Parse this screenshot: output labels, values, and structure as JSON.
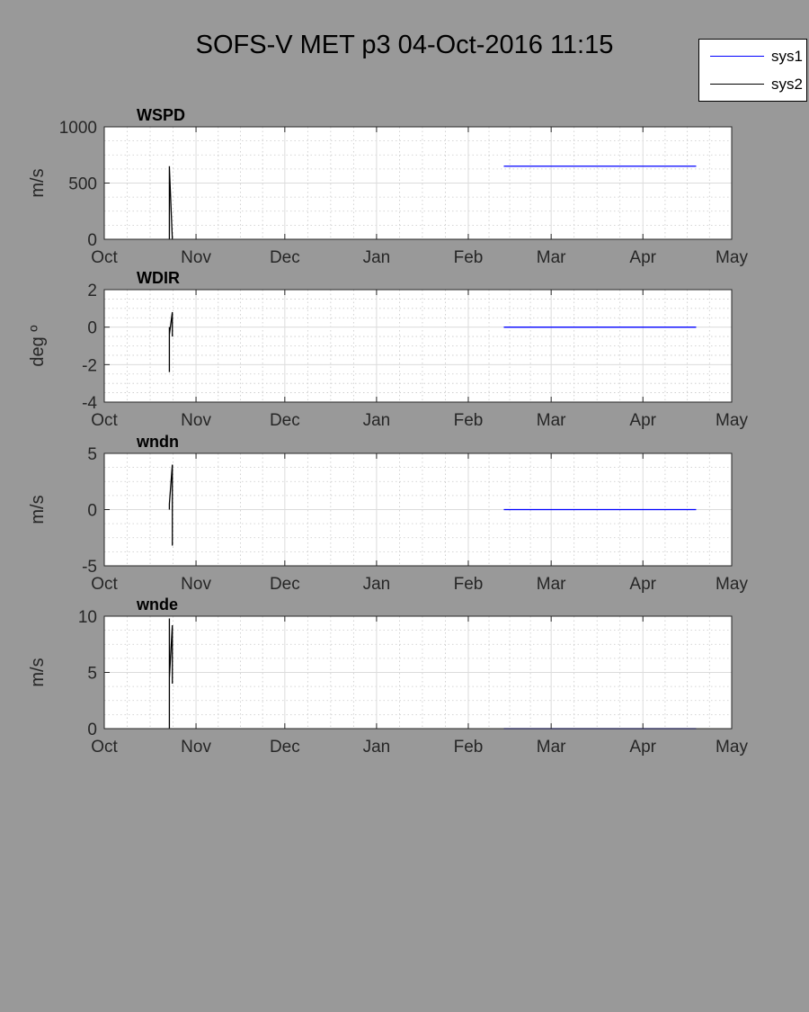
{
  "figure": {
    "title": "SOFS-V MET p3 04-Oct-2016 11:15"
  },
  "colors": {
    "background": "#999999",
    "axes_bg": "#ffffff",
    "sys1": "#0000ff",
    "sys2": "#000000"
  },
  "legend": {
    "placement": "top-right",
    "items": [
      {
        "label": "sys1",
        "color": "#0000ff"
      },
      {
        "label": "sys2",
        "color": "#000000"
      }
    ]
  },
  "chart_data": [
    {
      "type": "line",
      "title": "WSPD",
      "ylabel": "m/s",
      "xlim": [
        "2016-10-01",
        "2017-05-01"
      ],
      "ylim": [
        0,
        1000
      ],
      "yticks": [
        0,
        500,
        1000
      ],
      "ytick_labels": [
        "0",
        "500",
        "1000"
      ],
      "xticks": [
        "2016-10-01",
        "2016-11-01",
        "2016-12-01",
        "2017-01-01",
        "2017-02-01",
        "2017-03-01",
        "2017-04-01",
        "2017-05-01"
      ],
      "xtick_labels": [
        "Oct",
        "Nov",
        "Dec",
        "Jan",
        "Feb",
        "Mar",
        "Apr",
        "May"
      ],
      "grid": true,
      "minor_grid": true,
      "series": [
        {
          "name": "sys1",
          "color": "#0000ff",
          "x": [
            "2017-02-13",
            "2017-04-19"
          ],
          "y": [
            650,
            650
          ]
        },
        {
          "name": "sys2",
          "color": "#000000",
          "x": [
            "2016-10-23",
            "2016-10-23",
            "2016-10-23",
            "2016-10-24"
          ],
          "y": [
            0,
            650,
            640,
            0
          ]
        }
      ]
    },
    {
      "type": "line",
      "title": "WDIR",
      "ylabel": "deg º",
      "xlim": [
        "2016-10-01",
        "2017-05-01"
      ],
      "ylim": [
        -4,
        2
      ],
      "yticks": [
        -4,
        -2,
        0,
        2
      ],
      "ytick_labels": [
        "-4",
        "-2",
        "0",
        "2"
      ],
      "xticks": [
        "2016-10-01",
        "2016-11-01",
        "2016-12-01",
        "2017-01-01",
        "2017-02-01",
        "2017-03-01",
        "2017-04-01",
        "2017-05-01"
      ],
      "xtick_labels": [
        "Oct",
        "Nov",
        "Dec",
        "Jan",
        "Feb",
        "Mar",
        "Apr",
        "May"
      ],
      "grid": true,
      "minor_grid": true,
      "series": [
        {
          "name": "sys1",
          "color": "#0000ff",
          "x": [
            "2017-02-13",
            "2017-04-19"
          ],
          "y": [
            0,
            0
          ]
        },
        {
          "name": "sys2",
          "color": "#000000",
          "x": [
            "2016-10-23",
            "2016-10-23",
            "2016-10-23",
            "2016-10-24",
            "2016-10-24"
          ],
          "y": [
            -2.4,
            0,
            -0.4,
            0.8,
            -0.5
          ]
        }
      ]
    },
    {
      "type": "line",
      "title": "wndn",
      "ylabel": "m/s",
      "xlim": [
        "2016-10-01",
        "2017-05-01"
      ],
      "ylim": [
        -5,
        5
      ],
      "yticks": [
        -5,
        0,
        5
      ],
      "ytick_labels": [
        "-5",
        "0",
        "5"
      ],
      "xticks": [
        "2016-10-01",
        "2016-11-01",
        "2016-12-01",
        "2017-01-01",
        "2017-02-01",
        "2017-03-01",
        "2017-04-01",
        "2017-05-01"
      ],
      "xtick_labels": [
        "Oct",
        "Nov",
        "Dec",
        "Jan",
        "Feb",
        "Mar",
        "Apr",
        "May"
      ],
      "grid": true,
      "minor_grid": true,
      "series": [
        {
          "name": "sys1",
          "color": "#0000ff",
          "x": [
            "2017-02-13",
            "2017-04-19"
          ],
          "y": [
            0,
            0
          ]
        },
        {
          "name": "sys2",
          "color": "#000000",
          "x": [
            "2016-10-23",
            "2016-10-23",
            "2016-10-24",
            "2016-10-24"
          ],
          "y": [
            0,
            0.5,
            4,
            -3.2
          ]
        }
      ]
    },
    {
      "type": "line",
      "title": "wnde",
      "ylabel": "m/s",
      "xlim": [
        "2016-10-01",
        "2017-05-01"
      ],
      "ylim": [
        0,
        10
      ],
      "yticks": [
        0,
        5,
        10
      ],
      "ytick_labels": [
        "0",
        "5",
        "10"
      ],
      "xticks": [
        "2016-10-01",
        "2016-11-01",
        "2016-12-01",
        "2017-01-01",
        "2017-02-01",
        "2017-03-01",
        "2017-04-01",
        "2017-05-01"
      ],
      "xtick_labels": [
        "Oct",
        "Nov",
        "Dec",
        "Jan",
        "Feb",
        "Mar",
        "Apr",
        "May"
      ],
      "grid": true,
      "minor_grid": true,
      "series": [
        {
          "name": "sys1",
          "color": "#0000ff",
          "x": [
            "2017-02-13",
            "2017-04-19"
          ],
          "y": [
            0,
            0
          ]
        },
        {
          "name": "sys2",
          "color": "#000000",
          "x": [
            "2016-10-23",
            "2016-10-23",
            "2016-10-23",
            "2016-10-24",
            "2016-10-24",
            "2016-10-24"
          ],
          "y": [
            0,
            9.8,
            4.5,
            9.2,
            4,
            7.5
          ]
        }
      ]
    }
  ]
}
